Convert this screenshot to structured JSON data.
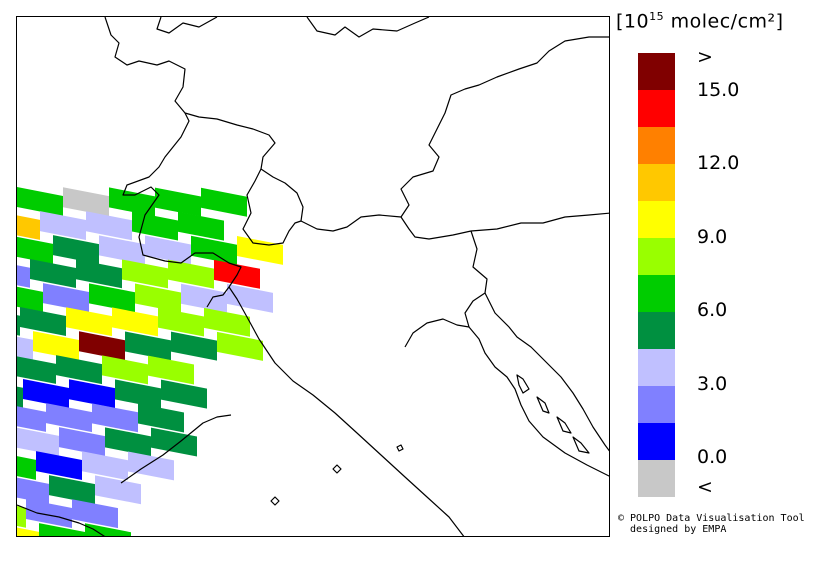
{
  "legend": {
    "unit_open": "[10",
    "unit_exp": "15",
    "unit_rest": " molec/cm²]",
    "colors": [
      "#c8c8c8",
      "#0000ff",
      "#8080ff",
      "#c0c0ff",
      "#009040",
      "#00cc00",
      "#99ff00",
      "#ffff00",
      "#ffc800",
      "#ff8000",
      "#ff0000",
      "#800000"
    ],
    "labels": {
      "over": ">",
      "v15": "15.0",
      "v12": "12.0",
      "v9": "9.0",
      "v6": "6.0",
      "v3": "3.0",
      "v0": "0.0",
      "under": "<"
    }
  },
  "credit": {
    "line1": "© POLPO Data Visualisation Tool",
    "line2": "  designed by EMPA"
  },
  "map": {
    "pixel_classes": [
      [
        5,
        0,
        5,
        5,
        5
      ],
      [
        8,
        3,
        3,
        5,
        5
      ],
      [
        5,
        4,
        3,
        3,
        5,
        7
      ],
      [
        2,
        4,
        4,
        6,
        6,
        10
      ],
      [
        5,
        2,
        5,
        6,
        3,
        3
      ],
      [
        4,
        4,
        7,
        7,
        6,
        6
      ],
      [
        3,
        7,
        11,
        4,
        4,
        6
      ],
      [
        2,
        4,
        4,
        6,
        6
      ],
      [
        4,
        1,
        1,
        4,
        4
      ],
      [
        4,
        2,
        2,
        2,
        4
      ],
      [
        3,
        3,
        2,
        4,
        4
      ],
      [
        5,
        5,
        1,
        3,
        3
      ],
      [
        6,
        2,
        4,
        3
      ],
      [
        7,
        6,
        2,
        2
      ],
      [
        8,
        7,
        5,
        5
      ]
    ]
  }
}
